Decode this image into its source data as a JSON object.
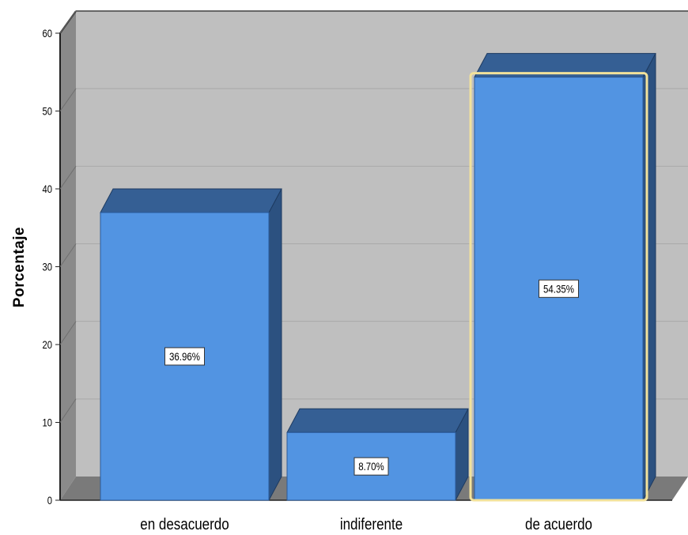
{
  "chart_data": {
    "type": "bar",
    "ylabel": "Porcentaje",
    "xlabel": "",
    "ylim": [
      0,
      60
    ],
    "yticks": [
      0,
      10,
      20,
      30,
      40,
      50,
      60
    ],
    "categories": [
      "en desacuerdo",
      "indiferente",
      "de acuerdo"
    ],
    "values": [
      36.96,
      8.7,
      54.35
    ],
    "data_labels": [
      "36.96%",
      "8.70%",
      "54.35%"
    ],
    "highlighted_category": "de acuerdo",
    "grid": true,
    "style": "3d",
    "colors": {
      "bar_front": "#5294e2",
      "bar_top": "#355f94",
      "bar_side": "#2c5180",
      "plot_back": "#bfbfbf",
      "plot_left_wall": "#8a8a8a",
      "plot_floor": "#7a7a7a",
      "gridline": "#a9a9a9",
      "highlight": "#f2e29b"
    }
  }
}
